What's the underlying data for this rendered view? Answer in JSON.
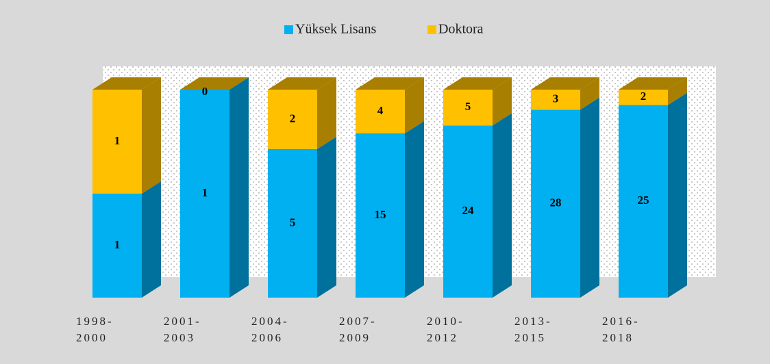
{
  "chart_data": {
    "type": "stacked_percent_bar_3d",
    "categories": [
      "1998-\n2000",
      "2001-\n2003",
      "2004-\n2006",
      "2007-\n2009",
      "2010-\n2012",
      "2013-\n2015",
      "2016-\n2018"
    ],
    "series": [
      {
        "name": "Yüksek Lisans",
        "color": "#00b0f0",
        "side_color": "#00719c",
        "values": [
          1,
          1,
          5,
          15,
          24,
          28,
          25
        ]
      },
      {
        "name": "Doktora",
        "color": "#ffc000",
        "side_color": "#a87f00",
        "values": [
          1,
          0,
          2,
          4,
          5,
          3,
          2
        ]
      }
    ],
    "legend": "top"
  }
}
